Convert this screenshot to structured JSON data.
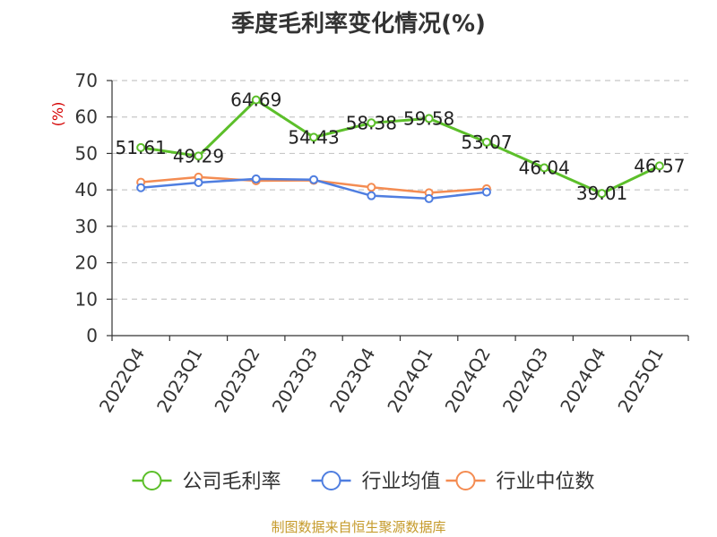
{
  "chart_data": {
    "type": "line",
    "title": "季度毛利率变化情况(%)",
    "ylabel": "(%)",
    "ylim": [
      0,
      70
    ],
    "yticks": [
      0,
      10,
      20,
      30,
      40,
      50,
      60,
      70
    ],
    "grid": true,
    "legend_position": "bottom",
    "categories": [
      "2022Q4",
      "2023Q1",
      "2023Q2",
      "2023Q3",
      "2023Q4",
      "2024Q1",
      "2024Q2",
      "2024Q3",
      "2024Q4",
      "2025Q1"
    ],
    "series": [
      {
        "name": "公司毛利率",
        "color": "#5cbf2a",
        "show_labels": true,
        "values": [
          51.61,
          49.29,
          64.69,
          54.43,
          58.38,
          59.58,
          53.07,
          46.04,
          39.01,
          46.57
        ],
        "labels": [
          "51.61",
          "49.29",
          "64.69",
          "54.43",
          "58.38",
          "59.58",
          "53.07",
          "46.04",
          "39.01",
          "46.57"
        ]
      },
      {
        "name": "行业均值",
        "color": "#4f7ee0",
        "show_labels": false,
        "values": [
          40.6,
          42.0,
          43.0,
          42.8,
          38.4,
          37.6,
          39.4,
          null,
          null,
          null
        ]
      },
      {
        "name": "行业中位数",
        "color": "#f48c52",
        "show_labels": false,
        "values": [
          42.1,
          43.5,
          42.5,
          42.6,
          40.7,
          39.2,
          40.3,
          null,
          null,
          null
        ]
      }
    ]
  },
  "source": "制图数据来自恒生聚源数据库"
}
